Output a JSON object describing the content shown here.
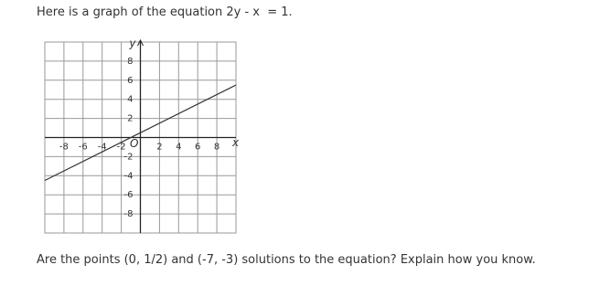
{
  "prompt": "Here is a graph of the equation 2y - x  = 1.",
  "chart_data": {
    "type": "line",
    "x": [
      -10,
      10
    ],
    "values": [
      -4.5,
      5.5
    ],
    "xlim": [
      -10,
      10
    ],
    "ylim": [
      -10,
      10
    ],
    "xticks": [
      -8,
      -6,
      -4,
      -2,
      2,
      4,
      6,
      8
    ],
    "yticks": [
      -8,
      -6,
      -4,
      -2,
      2,
      4,
      6,
      8
    ],
    "xlabel": "x",
    "ylabel": "y",
    "origin_label": "O",
    "grid": true,
    "color": "#333333"
  },
  "question": "Are the points (0, 1/2) and (-7, -3) solutions to the equation? Explain how you know."
}
